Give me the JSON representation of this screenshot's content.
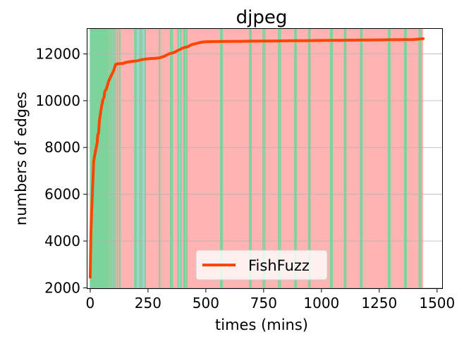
{
  "chart_data": {
    "type": "line",
    "title": "djpeg",
    "xlabel": "times (mins)",
    "ylabel": "numbers of edges",
    "xlim": [
      -15,
      1525
    ],
    "ylim": [
      1950,
      13100
    ],
    "xticks": [
      0,
      250,
      500,
      750,
      1000,
      1250,
      1500
    ],
    "xtick_labels": [
      "0",
      "250",
      "500",
      "750",
      "1000",
      "1250",
      "1500"
    ],
    "yticks": [
      2000,
      4000,
      6000,
      8000,
      10000,
      12000
    ],
    "ytick_labels": [
      "2000",
      "4000",
      "6000",
      "8000",
      "10000",
      "12000"
    ],
    "grid": "y",
    "legend_position": "lower center",
    "colors": {
      "series": "#ff4500",
      "background_band": "#ffb3b3",
      "green_band": "#7dd49a",
      "teal_band": "#9fd3d6",
      "grid": "#b0b0b0"
    },
    "background_band": [
      0,
      1440
    ],
    "green_bands_x": [
      2,
      6,
      10,
      14,
      18,
      22,
      26,
      31,
      35,
      40,
      45,
      50,
      55,
      60,
      66,
      72,
      78,
      85,
      92,
      100,
      108,
      118,
      128,
      193,
      198,
      215,
      222,
      238,
      300,
      348,
      355,
      380,
      392,
      405,
      410,
      418,
      565,
      570,
      690,
      695,
      748,
      755,
      815,
      822,
      885,
      890,
      945,
      950,
      1040,
      1046,
      1100,
      1105,
      1170,
      1175,
      1290,
      1296,
      1360,
      1366,
      1423,
      1430
    ],
    "teal_bands_x": [
      4,
      12,
      24,
      33,
      52,
      69,
      95,
      205,
      230,
      352,
      386,
      567,
      692,
      1043,
      1172
    ],
    "series": [
      {
        "name": "FishFuzz",
        "x": [
          0,
          3,
          6,
          10,
          15,
          20,
          25,
          30,
          33,
          36,
          40,
          45,
          50,
          55,
          60,
          63,
          66,
          70,
          80,
          90,
          100,
          110,
          120,
          140,
          160,
          180,
          200,
          220,
          240,
          260,
          280,
          300,
          320,
          340,
          360,
          380,
          400,
          410,
          420,
          440,
          460,
          480,
          500,
          550,
          600,
          650,
          700,
          750,
          800,
          850,
          900,
          950,
          1000,
          1050,
          1100,
          1150,
          1200,
          1250,
          1300,
          1350,
          1400,
          1440
        ],
        "values": [
          2450,
          4300,
          5200,
          6200,
          7400,
          7700,
          7950,
          8200,
          8550,
          8600,
          9150,
          9500,
          9800,
          10050,
          10150,
          10400,
          10450,
          10500,
          10850,
          11050,
          11250,
          11550,
          11580,
          11590,
          11650,
          11680,
          11700,
          11750,
          11780,
          11800,
          11810,
          11830,
          11900,
          12000,
          12050,
          12150,
          12250,
          12280,
          12300,
          12400,
          12450,
          12500,
          12520,
          12530,
          12535,
          12540,
          12545,
          12550,
          12555,
          12560,
          12565,
          12570,
          12575,
          12580,
          12585,
          12590,
          12595,
          12600,
          12605,
          12610,
          12615,
          12650
        ]
      }
    ]
  }
}
